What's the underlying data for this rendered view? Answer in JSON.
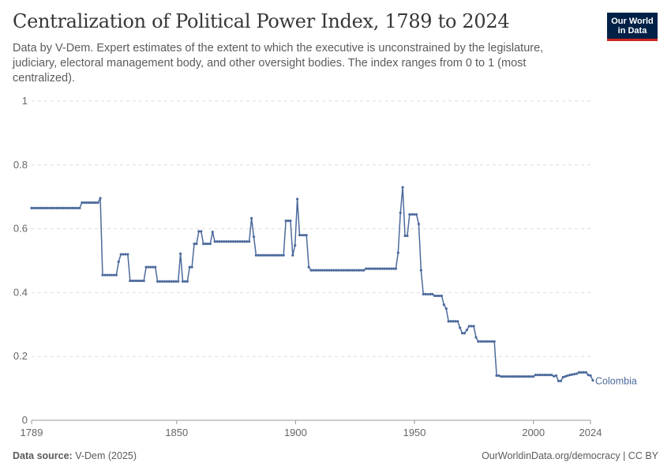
{
  "header": {
    "title": "Centralization of Political Power Index, 1789 to 2024",
    "subtitle": "Data by V-Dem. Expert estimates of the extent to which the executive is unconstrained by the legislature, judiciary, electoral management body, and other oversight bodies. The index ranges from 0 to 1 (most centralized).",
    "logo_line1": "Our World",
    "logo_line2": "in Data"
  },
  "footer": {
    "source_label": "Data source:",
    "source_value": "V-Dem (2025)",
    "right_text": "OurWorldinData.org/democracy | CC BY"
  },
  "colors": {
    "series": "#4c6a9c",
    "grid": "#dddddd",
    "axis": "#666666",
    "brand": "#002147",
    "brand_accent": "#ce261e"
  },
  "chart_data": {
    "type": "line",
    "xlim": [
      1789,
      2024
    ],
    "ylim": [
      0,
      1
    ],
    "x_ticks": [
      1789,
      1850,
      1900,
      1950,
      2000,
      2024
    ],
    "y_ticks": [
      0,
      0.2,
      0.4,
      0.6,
      0.8,
      1
    ],
    "y_tick_labels": [
      "0",
      "0.2",
      "0.4",
      "0.6",
      "0.8",
      "1"
    ],
    "grid": "horizontal dashed",
    "series": [
      {
        "name": "Colombia",
        "points": [
          [
            1789,
            0.665
          ],
          [
            1810,
            0.665
          ],
          [
            1811,
            0.682
          ],
          [
            1818,
            0.682
          ],
          [
            1819,
            0.696
          ],
          [
            1820,
            0.455
          ],
          [
            1826,
            0.455
          ],
          [
            1827,
            0.497
          ],
          [
            1828,
            0.52
          ],
          [
            1831,
            0.52
          ],
          [
            1832,
            0.437
          ],
          [
            1838,
            0.437
          ],
          [
            1839,
            0.48
          ],
          [
            1843,
            0.48
          ],
          [
            1844,
            0.435
          ],
          [
            1853,
            0.435
          ],
          [
            1854,
            0.522
          ],
          [
            1855,
            0.435
          ],
          [
            1857,
            0.435
          ],
          [
            1858,
            0.48
          ],
          [
            1859,
            0.48
          ],
          [
            1860,
            0.553
          ],
          [
            1861,
            0.553
          ],
          [
            1862,
            0.592
          ],
          [
            1863,
            0.592
          ],
          [
            1864,
            0.553
          ],
          [
            1867,
            0.553
          ],
          [
            1868,
            0.59
          ],
          [
            1869,
            0.56
          ],
          [
            1884,
            0.56
          ],
          [
            1885,
            0.633
          ],
          [
            1886,
            0.575
          ],
          [
            1887,
            0.517
          ],
          [
            1899,
            0.517
          ],
          [
            1900,
            0.625
          ],
          [
            1902,
            0.625
          ],
          [
            1903,
            0.517
          ],
          [
            1904,
            0.548
          ],
          [
            1905,
            0.693
          ],
          [
            1906,
            0.58
          ],
          [
            1909,
            0.58
          ],
          [
            1910,
            0.48
          ],
          [
            1911,
            0.47
          ],
          [
            1934,
            0.47
          ],
          [
            1935,
            0.475
          ],
          [
            1948,
            0.475
          ],
          [
            1949,
            0.525
          ],
          [
            1950,
            0.65
          ],
          [
            1951,
            0.73
          ],
          [
            1952,
            0.578
          ],
          [
            1953,
            0.578
          ],
          [
            1954,
            0.645
          ],
          [
            1957,
            0.645
          ],
          [
            1958,
            0.615
          ],
          [
            1959,
            0.47
          ],
          [
            1960,
            0.395
          ],
          [
            1964,
            0.395
          ],
          [
            1965,
            0.39
          ],
          [
            1968,
            0.39
          ],
          [
            1969,
            0.362
          ],
          [
            1970,
            0.35
          ],
          [
            1971,
            0.31
          ],
          [
            1975,
            0.31
          ],
          [
            1976,
            0.29
          ],
          [
            1977,
            0.273
          ],
          [
            1978,
            0.273
          ],
          [
            1979,
            0.283
          ],
          [
            1980,
            0.295
          ],
          [
            1982,
            0.295
          ],
          [
            1983,
            0.26
          ],
          [
            1984,
            0.247
          ],
          [
            1991,
            0.247
          ],
          [
            1992,
            0.14
          ],
          [
            1993,
            0.14
          ],
          [
            1994,
            0.137
          ],
          [
            2008,
            0.137
          ],
          [
            2009,
            0.142
          ],
          [
            2016,
            0.142
          ],
          [
            2017,
            0.138
          ],
          [
            2018,
            0.14
          ],
          [
            2019,
            0.123
          ],
          [
            2020,
            0.123
          ],
          [
            2021,
            0.135
          ],
          [
            2023,
            0.14
          ],
          [
            2024,
            0.142
          ],
          [
            2027,
            0.146
          ],
          [
            2028,
            0.15
          ],
          [
            2031,
            0.15
          ],
          [
            2032,
            0.142
          ],
          [
            2033,
            0.14
          ],
          [
            2034,
            0.125
          ]
        ]
      }
    ],
    "end_label": "Colombia"
  }
}
